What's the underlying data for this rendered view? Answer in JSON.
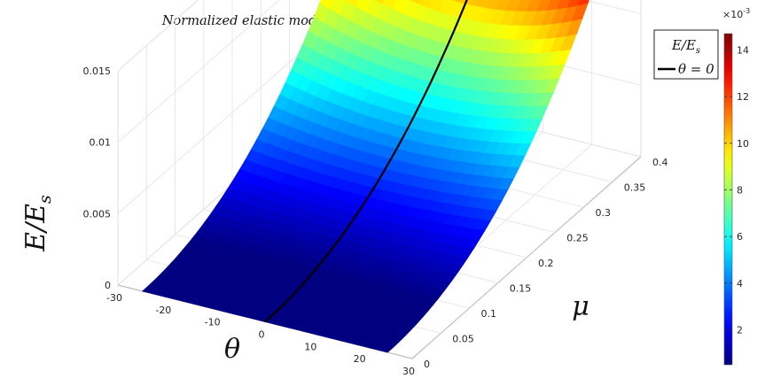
{
  "chart_data": {
    "type": "surface",
    "title": "Normalized elastic modulus distribution with respect to μ and θ",
    "x": {
      "label": "θ",
      "range": [
        -30,
        30
      ],
      "ticks": [
        "-30",
        "-20",
        "-10",
        "0",
        "10",
        "20",
        "30"
      ]
    },
    "y": {
      "label": "μ",
      "range": [
        0,
        0.4
      ],
      "ticks": [
        "0",
        "0.05",
        "0.1",
        "0.15",
        "0.2",
        "0.25",
        "0.3",
        "0.35",
        "0.4"
      ]
    },
    "z": {
      "label": "E/Es",
      "range": [
        0,
        0.015
      ],
      "ticks": [
        "0",
        "0.005",
        "0.01",
        "0.015"
      ]
    },
    "surface_domain": {
      "theta": [
        -25,
        25
      ],
      "mu": [
        0,
        0.4
      ]
    },
    "surface_samples": {
      "mu": [
        0,
        0.05,
        0.1,
        0.15,
        0.2,
        0.25,
        0.3,
        0.35,
        0.4
      ],
      "E_over_Es_at_theta_0": [
        0,
        0.0003,
        0.0012,
        0.0027,
        0.0047,
        0.0066,
        0.009,
        0.0115,
        0.0145
      ],
      "E_over_Es_at_theta_pm25": [
        0,
        0.0003,
        0.0011,
        0.0025,
        0.0044,
        0.0068,
        0.0097,
        0.0129,
        0.0145
      ]
    },
    "colorbar": {
      "ticks": [
        "2",
        "4",
        "6",
        "8",
        "10",
        "12",
        "14"
      ],
      "tick_values": [
        2,
        4,
        6,
        8,
        10,
        12,
        14
      ],
      "range": [
        0.5,
        14.7
      ],
      "exponent": "×10",
      "exponent_power": "-3",
      "colormap": "jet"
    },
    "legend": {
      "entries": [
        {
          "label": "E/Es",
          "kind": "surface"
        },
        {
          "label": "θ = 0",
          "kind": "line",
          "color": "#000000"
        }
      ],
      "placement": "top-right"
    },
    "highlight_line": {
      "theta": 0,
      "color": "#000000"
    },
    "grid": true
  }
}
